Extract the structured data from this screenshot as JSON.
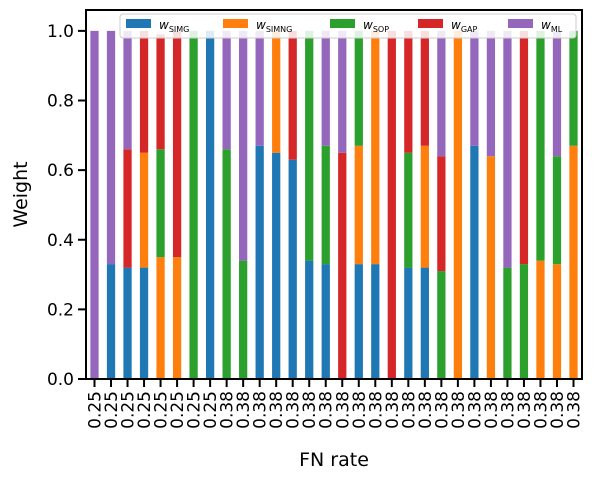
{
  "chart_data": {
    "type": "bar",
    "stacked": true,
    "xlabel": "FN rate",
    "ylabel": "Weight",
    "ylim": [
      0,
      1.06
    ],
    "yticks": [
      "0.0",
      "0.2",
      "0.4",
      "0.6",
      "0.8",
      "1.0"
    ],
    "grid": false,
    "legend_position": "top",
    "categories": [
      "0.25",
      "0.25",
      "0.25",
      "0.25",
      "0.25",
      "0.25",
      "0.25",
      "0.25",
      "0.38",
      "0.38",
      "0.38",
      "0.38",
      "0.38",
      "0.38",
      "0.38",
      "0.38",
      "0.38",
      "0.38",
      "0.38",
      "0.38",
      "0.38",
      "0.38",
      "0.38",
      "0.38",
      "0.38",
      "0.38",
      "0.38",
      "0.38",
      "0.38",
      "0.38"
    ],
    "series": [
      {
        "name": "w_SIMG",
        "label_main": "w",
        "label_sub": "SIMG",
        "color": "#1f77b4",
        "values": [
          0,
          0.33,
          0.32,
          0.32,
          0,
          0,
          0,
          1.0,
          0,
          0,
          0.67,
          0.65,
          0.63,
          0.34,
          0.33,
          0,
          0.33,
          0.33,
          0,
          0.32,
          0.32,
          0,
          0,
          0.67,
          0,
          0,
          0,
          0,
          0,
          0
        ]
      },
      {
        "name": "w_SIMNG",
        "label_main": "w",
        "label_sub": "SIMNG",
        "color": "#ff7f0e",
        "values": [
          0,
          0,
          0,
          0.33,
          0.35,
          0.35,
          0,
          0,
          0,
          0,
          0,
          0.35,
          0,
          0,
          0,
          0,
          0.34,
          0.67,
          0,
          0,
          0.35,
          0,
          1.0,
          0,
          0.64,
          0,
          0,
          0.34,
          0.33,
          0.67
        ]
      },
      {
        "name": "w_SOP",
        "label_main": "w",
        "label_sub": "SOP",
        "color": "#2ca02c",
        "values": [
          0,
          0,
          0,
          0,
          0.31,
          0,
          1.0,
          0,
          0.66,
          0.34,
          0,
          0,
          0,
          0.66,
          0.34,
          0,
          0.33,
          0,
          0,
          0.33,
          0,
          0.31,
          0,
          0,
          0,
          0.32,
          0.33,
          0.66,
          0.31,
          0.33
        ]
      },
      {
        "name": "w_GAP",
        "label_main": "w",
        "label_sub": "GAP",
        "color": "#d62728",
        "values": [
          0,
          0,
          0.34,
          0.35,
          0.33,
          0.65,
          0,
          0,
          0,
          0,
          0,
          0,
          0.37,
          0,
          0,
          0.65,
          0,
          0,
          1.0,
          0.35,
          0.33,
          0.33,
          0,
          0,
          0,
          0,
          0.67,
          0,
          0,
          0
        ]
      },
      {
        "name": "w_ML",
        "label_main": "w",
        "label_sub": "ML",
        "color": "#9467bd",
        "values": [
          1.0,
          0.67,
          0.34,
          0,
          0,
          0,
          0,
          0,
          0.34,
          0.66,
          0.33,
          0,
          0,
          0,
          0.33,
          0.35,
          0,
          0,
          0,
          0,
          0,
          0.36,
          0,
          0.33,
          0.36,
          0.68,
          0,
          0,
          0.36,
          0
        ]
      }
    ]
  }
}
